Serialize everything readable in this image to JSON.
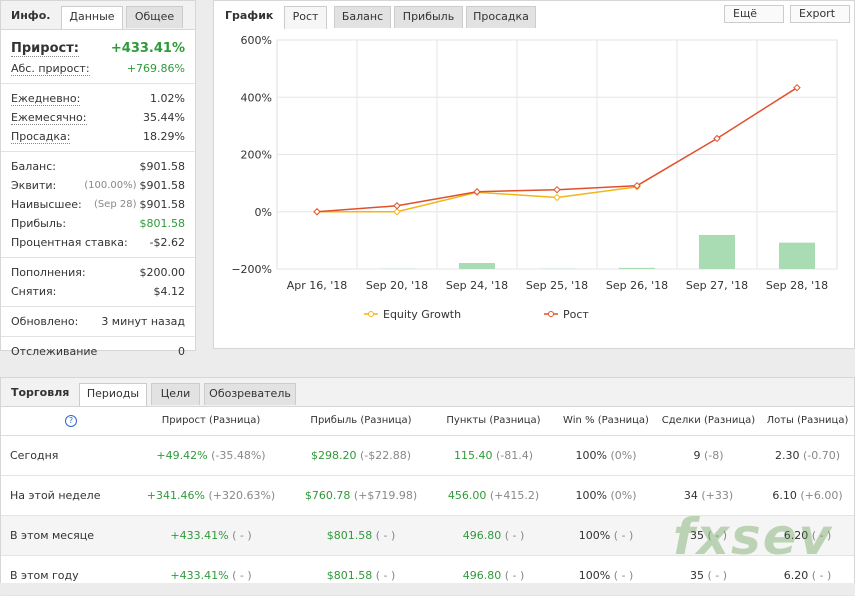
{
  "info": {
    "title": "Инфо.",
    "tabs": [
      "Данные",
      "Общее"
    ],
    "groups": [
      [
        {
          "label": "Прирост:",
          "value": "+433.41%",
          "color": "#2e9b3a"
        },
        {
          "label": "Абс. прирост:",
          "value": "+769.86%",
          "color": "#2e9b3a"
        }
      ],
      [
        {
          "label": "Ежедневно:",
          "value": "1.02%"
        },
        {
          "label": "Ежемесячно:",
          "value": "35.44%"
        },
        {
          "label": "Просадка:",
          "value": "18.29%"
        }
      ],
      [
        {
          "label": "Баланс:",
          "value": "$901.58"
        },
        {
          "label": "Эквити:",
          "note": "(100.00%)",
          "value": "$901.58"
        },
        {
          "label": "Наивысшее:",
          "note": "(Sep 28)",
          "value": "$901.58"
        },
        {
          "label": "Прибыль:",
          "value": "$801.58",
          "color": "#2e9b3a"
        },
        {
          "label": "Процентная ставка:",
          "value": "-$2.62"
        }
      ],
      [
        {
          "label": "Пополнения:",
          "value": "$200.00"
        },
        {
          "label": "Снятия:",
          "value": "$4.12"
        }
      ],
      [
        {
          "label": "Обновлено:",
          "value": "3 минут назад"
        }
      ],
      [
        {
          "label": "Отслеживание",
          "value": "0"
        }
      ]
    ]
  },
  "chart_panel": {
    "title": "График",
    "tabs": [
      "Рост",
      "Баланс",
      "Прибыль",
      "Просадка"
    ],
    "buttons": [
      "Ещё",
      "Export"
    ]
  },
  "chart_data": {
    "type": "line",
    "categories": [
      "Apr 16, '18",
      "Sep 20, '18",
      "Sep 24, '18",
      "Sep 25, '18",
      "Sep 26, '18",
      "Sep 27, '18",
      "Sep 28, '18"
    ],
    "series": [
      {
        "name": "Equity Growth",
        "color": "#f2b619",
        "values": [
          0,
          0,
          68,
          50,
          87,
          null,
          null
        ]
      },
      {
        "name": "Рост",
        "color": "#e0512b",
        "values": [
          0,
          21,
          70,
          77,
          91,
          256,
          433.41
        ]
      },
      {
        "type": "bar",
        "color": "#a9dcb3",
        "values": [
          null,
          -199,
          -179,
          -199,
          -196,
          -81,
          -108
        ]
      }
    ],
    "ylim": [
      -200,
      600
    ],
    "yticks": [
      {
        "value": -200,
        "label": "−200%"
      },
      {
        "value": 0,
        "label": "0%"
      },
      {
        "value": 200,
        "label": "200%"
      },
      {
        "value": 400,
        "label": "400%"
      },
      {
        "value": 600,
        "label": "600%"
      }
    ],
    "grid": true
  },
  "trading": {
    "title": "Торговля",
    "tabs": [
      "Периоды",
      "Цели",
      "Обозреватель"
    ],
    "help": "?",
    "header": [
      "Прирост (Разница)",
      "Прибыль (Разница)",
      "Пункты (Разница)",
      "Win % (Разница)",
      "Сделки (Разница)",
      "Лоты (Разница)"
    ],
    "rows": [
      {
        "label": "Сегодня",
        "cells": [
          {
            "value": "+49.42%",
            "diff": "(-35.48%)"
          },
          {
            "value": "$298.20",
            "diff": "(-$22.88)"
          },
          {
            "value": "115.40",
            "diff": "(-81.4)"
          },
          {
            "value": "100%",
            "diff": "(0%)"
          },
          {
            "value": "9",
            "diff": "(-8)"
          },
          {
            "value": "2.30",
            "diff": "(-0.70)"
          }
        ]
      },
      {
        "label": "На этой неделе",
        "cells": [
          {
            "value": "+341.46%",
            "diff": "(+320.63%)"
          },
          {
            "value": "$760.78",
            "diff": "(+$719.98)"
          },
          {
            "value": "456.00",
            "diff": "(+415.2)"
          },
          {
            "value": "100%",
            "diff": "(0%)"
          },
          {
            "value": "34",
            "diff": "(+33)"
          },
          {
            "value": "6.10",
            "diff": "(+6.00)"
          }
        ]
      },
      {
        "label": "В этом месяце",
        "cells": [
          {
            "value": "+433.41%",
            "diff": "( - )"
          },
          {
            "value": "$801.58",
            "diff": "( - )"
          },
          {
            "value": "496.80",
            "diff": "( - )"
          },
          {
            "value": "100%",
            "diff": "( - )"
          },
          {
            "value": "35",
            "diff": "( - )"
          },
          {
            "value": "6.20",
            "diff": "( - )"
          }
        ]
      },
      {
        "label": "В этом году",
        "cells": [
          {
            "value": "+433.41%",
            "diff": "( - )"
          },
          {
            "value": "$801.58",
            "diff": "( - )"
          },
          {
            "value": "496.80",
            "diff": "( - )"
          },
          {
            "value": "100%",
            "diff": "( - )"
          },
          {
            "value": "35",
            "diff": "( - )"
          },
          {
            "value": "6.20",
            "diff": "( - )"
          }
        ]
      }
    ]
  },
  "watermark": "fxsev"
}
